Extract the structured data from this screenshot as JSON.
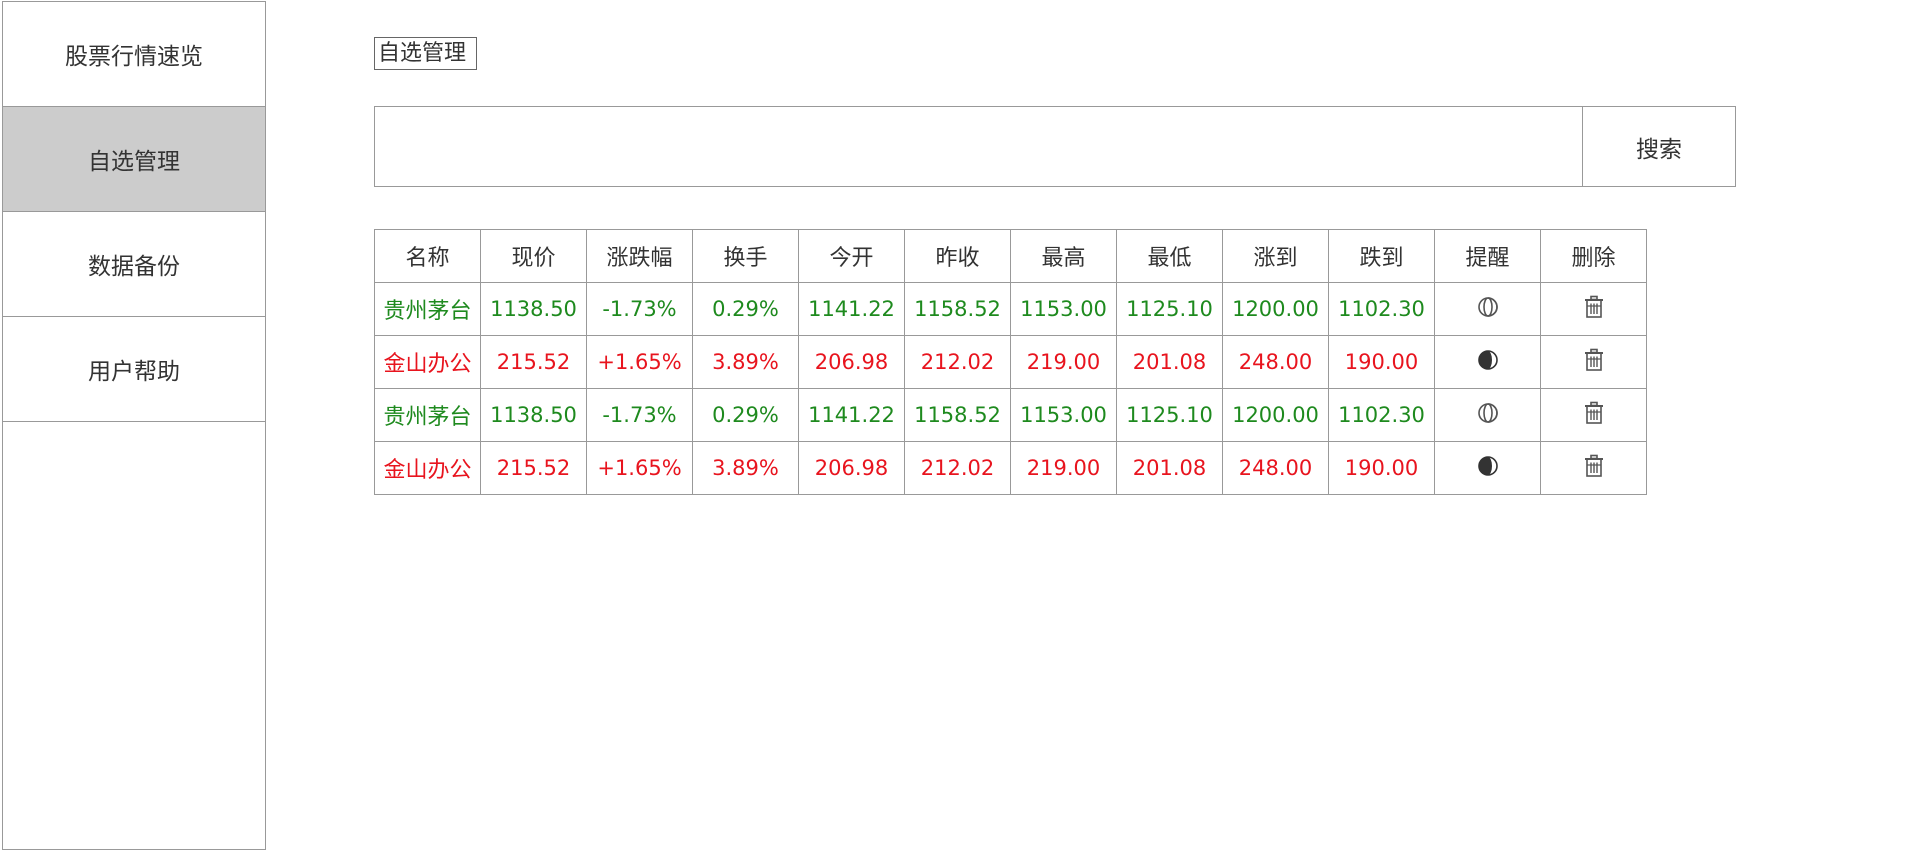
{
  "sidebar": {
    "items": [
      {
        "label": "股票行情速览",
        "active": false
      },
      {
        "label": "自选管理",
        "active": true
      },
      {
        "label": "数据备份",
        "active": false
      },
      {
        "label": "用户帮助",
        "active": false
      }
    ]
  },
  "page": {
    "title": "自选管理"
  },
  "search": {
    "value": "",
    "placeholder": "",
    "button_label": "搜索"
  },
  "colors": {
    "down": "#1e8a1e",
    "up": "#e8141e",
    "active_nav": "#cccccc",
    "border": "#999999"
  },
  "table": {
    "headers": [
      "名称",
      "现价",
      "涨跌幅",
      "换手",
      "今开",
      "昨收",
      "最高",
      "最低",
      "涨到",
      "跌到",
      "提醒",
      "删除"
    ],
    "rows": [
      {
        "trend": "down",
        "cells": [
          "贵州茅台",
          "1138.50",
          "-1.73%",
          "0.29%",
          "1141.22",
          "1158.52",
          "1153.00",
          "1125.10",
          "1200.00",
          "1102.30"
        ],
        "reminder_icon": "toggle-off-icon",
        "delete_icon": "trash-icon"
      },
      {
        "trend": "up",
        "cells": [
          "金山办公",
          "215.52",
          "+1.65%",
          "3.89%",
          "206.98",
          "212.02",
          "219.00",
          "201.08",
          "248.00",
          "190.00"
        ],
        "reminder_icon": "toggle-on-icon",
        "delete_icon": "trash-icon"
      },
      {
        "trend": "down",
        "cells": [
          "贵州茅台",
          "1138.50",
          "-1.73%",
          "0.29%",
          "1141.22",
          "1158.52",
          "1153.00",
          "1125.10",
          "1200.00",
          "1102.30"
        ],
        "reminder_icon": "toggle-off-icon",
        "delete_icon": "trash-icon"
      },
      {
        "trend": "up",
        "cells": [
          "金山办公",
          "215.52",
          "+1.65%",
          "3.89%",
          "206.98",
          "212.02",
          "219.00",
          "201.08",
          "248.00",
          "190.00"
        ],
        "reminder_icon": "toggle-on-icon",
        "delete_icon": "trash-icon"
      }
    ]
  }
}
